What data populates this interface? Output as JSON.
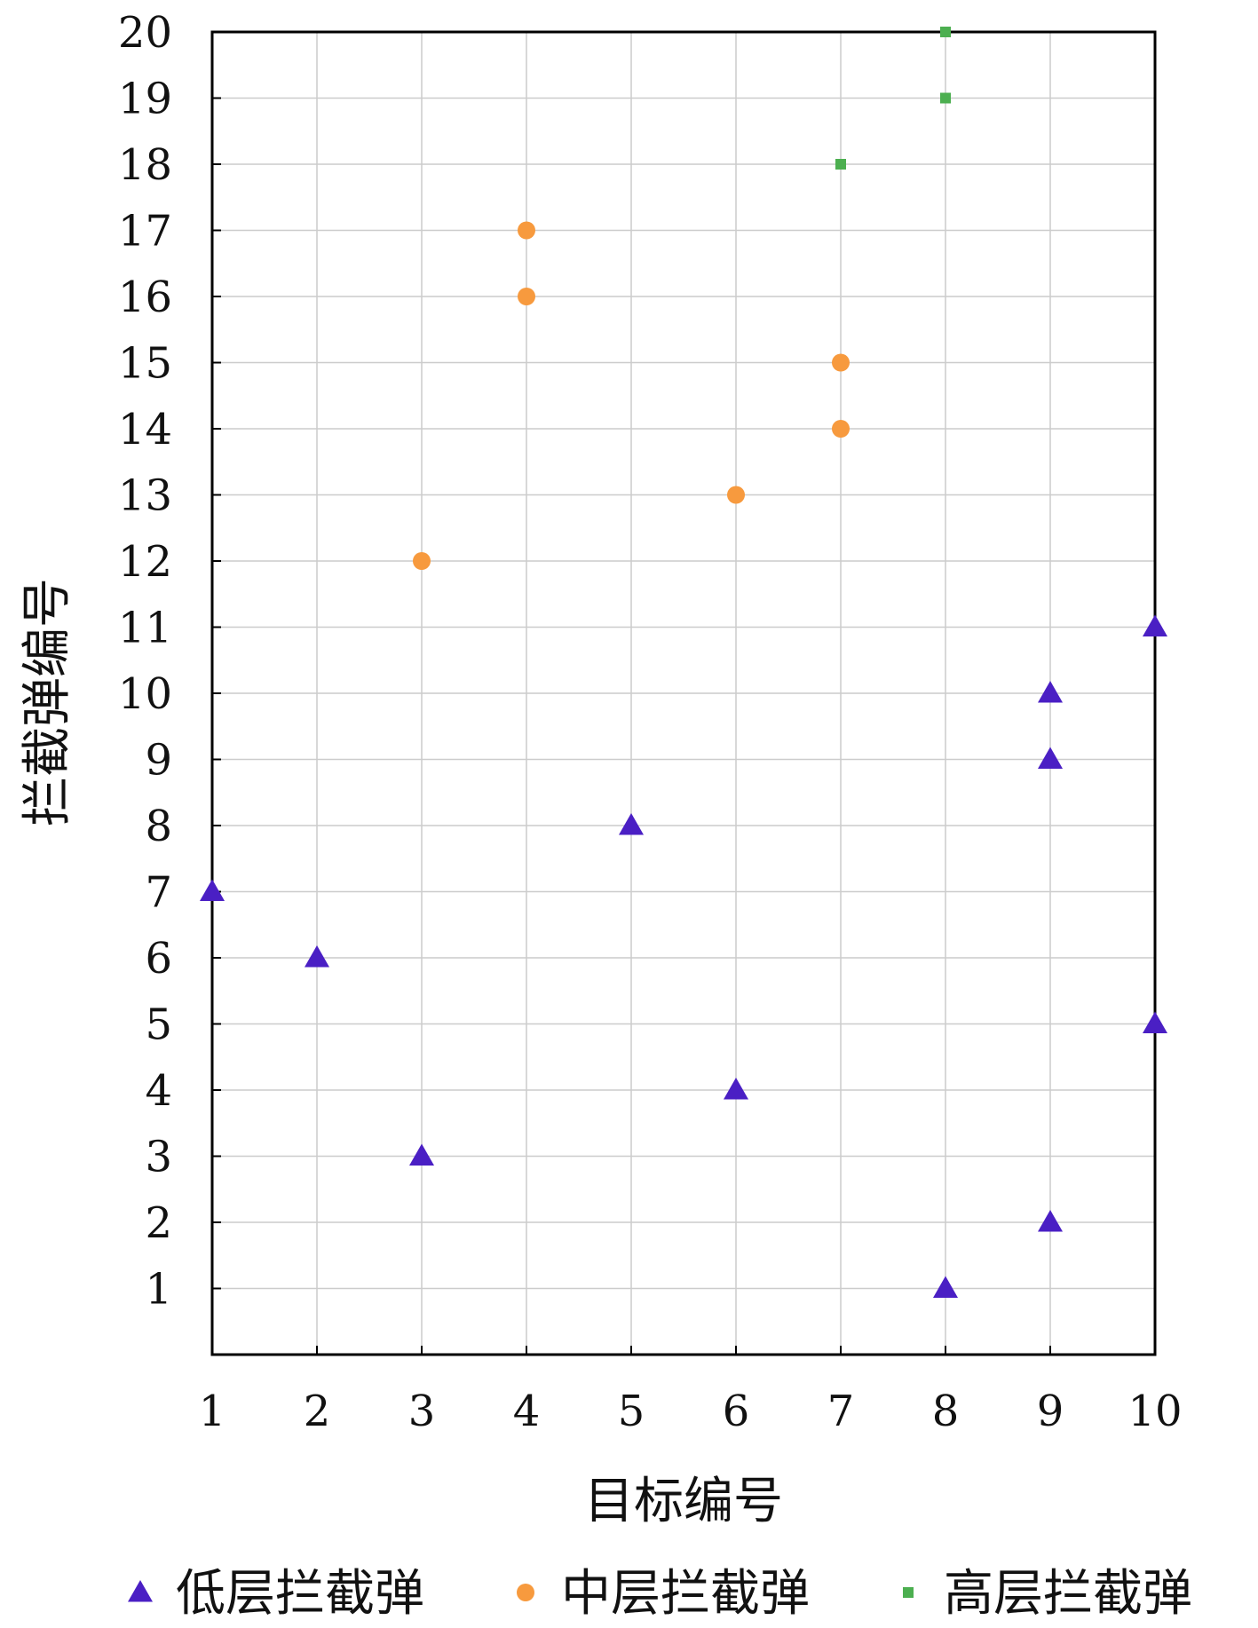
{
  "chart_data": {
    "type": "scatter",
    "xlabel": "目标编号",
    "ylabel": "拦截弹编号",
    "xlim": [
      1,
      10
    ],
    "ylim": [
      0,
      20
    ],
    "xticks": [
      "1",
      "2",
      "3",
      "4",
      "5",
      "6",
      "7",
      "8",
      "9",
      "10"
    ],
    "yticks": [
      "1",
      "2",
      "3",
      "4",
      "5",
      "6",
      "7",
      "8",
      "9",
      "10",
      "11",
      "12",
      "13",
      "14",
      "15",
      "16",
      "17",
      "18",
      "19",
      "20"
    ],
    "grid": true,
    "legend_position": "bottom",
    "series": [
      {
        "name": "低层拦截弹",
        "marker": "triangle",
        "color": "#4a1fc4",
        "points": [
          {
            "x": 1,
            "y": 7
          },
          {
            "x": 2,
            "y": 6
          },
          {
            "x": 3,
            "y": 3
          },
          {
            "x": 5,
            "y": 8
          },
          {
            "x": 6,
            "y": 4
          },
          {
            "x": 8,
            "y": 1
          },
          {
            "x": 9,
            "y": 2
          },
          {
            "x": 9,
            "y": 9
          },
          {
            "x": 9,
            "y": 10
          },
          {
            "x": 10,
            "y": 5
          },
          {
            "x": 10,
            "y": 11
          }
        ]
      },
      {
        "name": "中层拦截弹",
        "marker": "circle",
        "color": "#f79a3e",
        "points": [
          {
            "x": 3,
            "y": 12
          },
          {
            "x": 4,
            "y": 16
          },
          {
            "x": 4,
            "y": 17
          },
          {
            "x": 6,
            "y": 13
          },
          {
            "x": 7,
            "y": 14
          },
          {
            "x": 7,
            "y": 15
          }
        ]
      },
      {
        "name": "高层拦截弹",
        "marker": "square",
        "color": "#4caf50",
        "points": [
          {
            "x": 7,
            "y": 18
          },
          {
            "x": 8,
            "y": 19
          },
          {
            "x": 8,
            "y": 20
          }
        ]
      }
    ]
  }
}
